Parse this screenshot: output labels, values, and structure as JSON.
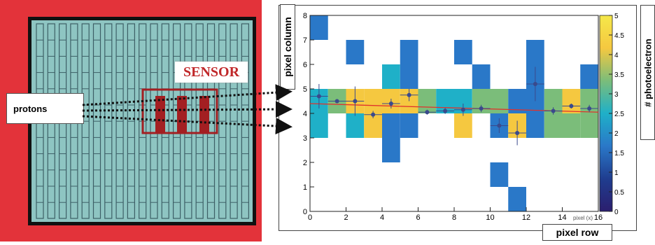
{
  "labels": {
    "sensor": "SENSOR",
    "protons": "protons",
    "ylabel": "pixel column",
    "xlabel": "pixel row",
    "zlabel": "# photoelectron",
    "axis_note": "pixel (x)"
  },
  "colors": {
    "frame_red": "#e3333a",
    "detector_teal": "#8ec5c2",
    "sensor_red": "#a31f22",
    "fit_line": "#e0322c",
    "point": "#3a4a8c"
  },
  "chart_data": {
    "type": "heatmap",
    "xlabel": "pixel row",
    "ylabel": "pixel column",
    "zlabel": "# photoelectron",
    "xlim": [
      0,
      16
    ],
    "ylim": [
      0,
      8
    ],
    "zlim": [
      0,
      5
    ],
    "xticks": [
      "0",
      "2",
      "4",
      "6",
      "8",
      "10",
      "12",
      "14",
      "16"
    ],
    "yticks": [
      "0",
      "1",
      "2",
      "3",
      "4",
      "5",
      "6",
      "7",
      "8"
    ],
    "zticks": [
      "0",
      "0.5",
      "1",
      "1.5",
      "2",
      "2.5",
      "3",
      "3.5",
      "4",
      "4.5",
      "5"
    ],
    "cells": [
      {
        "x": 0,
        "y": 7,
        "z": 1
      },
      {
        "x": 0,
        "y": 4,
        "z": 2
      },
      {
        "x": 0,
        "y": 3,
        "z": 2
      },
      {
        "x": 1,
        "y": 4,
        "z": 3
      },
      {
        "x": 2,
        "y": 6,
        "z": 1
      },
      {
        "x": 2,
        "y": 4,
        "z": 4
      },
      {
        "x": 2,
        "y": 3,
        "z": 2
      },
      {
        "x": 3,
        "y": 4,
        "z": 4
      },
      {
        "x": 3,
        "y": 3,
        "z": 4
      },
      {
        "x": 4,
        "y": 5,
        "z": 2
      },
      {
        "x": 4,
        "y": 4,
        "z": 4
      },
      {
        "x": 4,
        "y": 3,
        "z": 1
      },
      {
        "x": 4,
        "y": 2,
        "z": 1
      },
      {
        "x": 5,
        "y": 6,
        "z": 1
      },
      {
        "x": 5,
        "y": 5,
        "z": 1
      },
      {
        "x": 5,
        "y": 4,
        "z": 4
      },
      {
        "x": 5,
        "y": 3,
        "z": 1
      },
      {
        "x": 6,
        "y": 4,
        "z": 3
      },
      {
        "x": 7,
        "y": 4,
        "z": 2
      },
      {
        "x": 8,
        "y": 6,
        "z": 1
      },
      {
        "x": 8,
        "y": 4,
        "z": 2
      },
      {
        "x": 8,
        "y": 3,
        "z": 4
      },
      {
        "x": 9,
        "y": 5,
        "z": 1
      },
      {
        "x": 9,
        "y": 4,
        "z": 3
      },
      {
        "x": 10,
        "y": 4,
        "z": 3
      },
      {
        "x": 10,
        "y": 3,
        "z": 1
      },
      {
        "x": 10,
        "y": 1,
        "z": 1
      },
      {
        "x": 11,
        "y": 4,
        "z": 1
      },
      {
        "x": 11,
        "y": 3,
        "z": 4
      },
      {
        "x": 11,
        "y": 0,
        "z": 1
      },
      {
        "x": 12,
        "y": 6,
        "z": 1
      },
      {
        "x": 12,
        "y": 5,
        "z": 1
      },
      {
        "x": 12,
        "y": 4,
        "z": 1
      },
      {
        "x": 12,
        "y": 3,
        "z": 1
      },
      {
        "x": 13,
        "y": 4,
        "z": 3
      },
      {
        "x": 13,
        "y": 3,
        "z": 3
      },
      {
        "x": 14,
        "y": 4,
        "z": 4
      },
      {
        "x": 14,
        "y": 3,
        "z": 3
      },
      {
        "x": 15,
        "y": 5,
        "z": 1
      },
      {
        "x": 15,
        "y": 4,
        "z": 3
      },
      {
        "x": 15,
        "y": 3,
        "z": 3
      }
    ],
    "points": [
      {
        "x": 0.5,
        "y": 4.7,
        "yerr": 0.5
      },
      {
        "x": 1.5,
        "y": 4.5,
        "yerr": 0.05
      },
      {
        "x": 2.5,
        "y": 4.5,
        "yerr": 0.6
      },
      {
        "x": 3.5,
        "y": 3.95,
        "yerr": 0.15
      },
      {
        "x": 4.5,
        "y": 4.4,
        "yerr": 0.2
      },
      {
        "x": 5.5,
        "y": 4.75,
        "yerr": 0.25
      },
      {
        "x": 6.5,
        "y": 4.05,
        "yerr": 0.1
      },
      {
        "x": 7.5,
        "y": 4.1,
        "yerr": 0.12
      },
      {
        "x": 8.5,
        "y": 4.15,
        "yerr": 0.25
      },
      {
        "x": 9.5,
        "y": 4.2,
        "yerr": 0.15
      },
      {
        "x": 10.5,
        "y": 3.5,
        "yerr": 0.3
      },
      {
        "x": 11.5,
        "y": 3.2,
        "yerr": 0.5
      },
      {
        "x": 12.5,
        "y": 5.2,
        "yerr": 0.7
      },
      {
        "x": 13.5,
        "y": 4.1,
        "yerr": 0.15
      },
      {
        "x": 14.5,
        "y": 4.3,
        "yerr": 0.1
      },
      {
        "x": 15.5,
        "y": 4.2,
        "yerr": 0.15
      }
    ],
    "fit_line": {
      "x0": 0,
      "y0": 4.4,
      "x1": 16,
      "y1": 4.05
    }
  }
}
